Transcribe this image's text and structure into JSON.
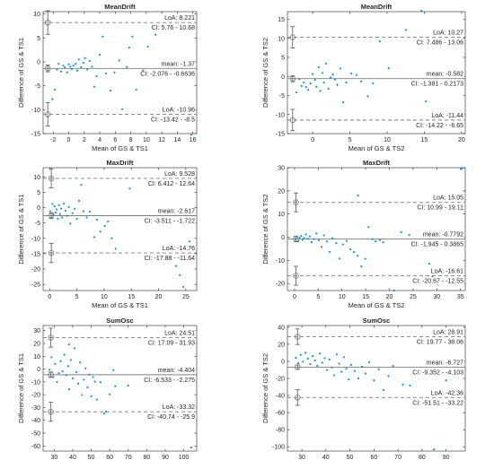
{
  "chart_data": [
    {
      "type": "scatter",
      "title": "MeanDrift",
      "xlabel": "Mean of GS & TS1",
      "ylabel": "Difference of GS & TS1",
      "xlim": [
        -3.3,
        16.5
      ],
      "ylim": [
        -15,
        10.5
      ],
      "xticks": [
        -2,
        0,
        2,
        4,
        6,
        8,
        10,
        12,
        14,
        16
      ],
      "yticks": [
        -15,
        -10,
        -5,
        0,
        5,
        10
      ],
      "mean": -1.37,
      "loa_upper": 8.221,
      "loa_lower": -10.96,
      "ci_x": -2.7,
      "ci_mean": [
        -2.076,
        -0.6636
      ],
      "ci_upper": [
        5.76,
        10.68
      ],
      "ci_lower": [
        -13.42,
        -8.5
      ],
      "label_upper": [
        "LoA: 8.221",
        "CI: 5.76 - 10.68"
      ],
      "label_mean": [
        "mean: -1.37",
        "CI: -2.076 - -0.6636"
      ],
      "label_lower": [
        "LoA: -10.96",
        "CI: -13.42 - -8.5"
      ],
      "points": [
        [
          -2.1,
          -7.8
        ],
        [
          -1.8,
          -5.8
        ],
        [
          -1.5,
          -1.6
        ],
        [
          -1.3,
          -0.4
        ],
        [
          -1,
          -2
        ],
        [
          -0.7,
          -0.8
        ],
        [
          -0.5,
          -1.2
        ],
        [
          -0.2,
          -2.2
        ],
        [
          0,
          -0.5
        ],
        [
          0.2,
          -1
        ],
        [
          0.4,
          -1.5
        ],
        [
          0.6,
          -0.8
        ],
        [
          0.9,
          -0.4
        ],
        [
          1.1,
          -1.8
        ],
        [
          1.3,
          0.5
        ],
        [
          1.6,
          -1.1
        ],
        [
          1.9,
          -0.2
        ],
        [
          2.1,
          0.8
        ],
        [
          2.4,
          -1.6
        ],
        [
          2.7,
          0.2
        ],
        [
          3,
          -1
        ],
        [
          3.3,
          -5.2
        ],
        [
          3.6,
          -3
        ],
        [
          4,
          1.5
        ],
        [
          4.4,
          5.3
        ],
        [
          4.8,
          -2.4
        ],
        [
          5.4,
          -6
        ],
        [
          5.9,
          -2.2
        ],
        [
          6.5,
          0.3
        ],
        [
          6.9,
          -9.9
        ],
        [
          7.5,
          -1.1
        ],
        [
          7.8,
          3
        ],
        [
          8.2,
          5.3
        ],
        [
          8.7,
          -5.8
        ],
        [
          9.6,
          -1.8
        ],
        [
          10.2,
          3.2
        ],
        [
          11.2,
          5.7
        ],
        [
          15.8,
          -15.2
        ]
      ]
    },
    {
      "type": "scatter",
      "title": "MeanDrift",
      "xlabel": "Mean of GS & TS2",
      "ylabel": "Difference of GS & TS2",
      "xlim": [
        -3.4,
        20.5
      ],
      "ylim": [
        -15,
        17
      ],
      "xticks": [
        0,
        5,
        10,
        15,
        20
      ],
      "yticks": [
        -15,
        -10,
        -5,
        0,
        5,
        10,
        15
      ],
      "mean": -0.582,
      "loa_upper": 10.27,
      "loa_lower": -11.44,
      "ci_x": -2.7,
      "ci_mean": [
        -1.381,
        0.2173
      ],
      "ci_upper": [
        7.486,
        13.06
      ],
      "ci_lower": [
        -14.22,
        -8.65
      ],
      "label_upper": [
        "LoA: 10.27",
        "CI: 7.486 - 13.06"
      ],
      "label_mean": [
        "mean: -0.582",
        "CI: -1.381 - 0.2173"
      ],
      "label_lower": [
        "LoA: -11.44",
        "CI: -14.22 - -8.65"
      ],
      "points": [
        [
          -2.2,
          -4.2
        ],
        [
          -1.8,
          -0.7
        ],
        [
          -1.5,
          -2.5
        ],
        [
          -1.2,
          -1.6
        ],
        [
          -0.9,
          -2.8
        ],
        [
          -0.6,
          -3.5
        ],
        [
          -0.3,
          -1.8
        ],
        [
          0,
          0.6
        ],
        [
          0.3,
          -0.9
        ],
        [
          0.5,
          -2.7
        ],
        [
          0.8,
          2.4
        ],
        [
          1,
          -3.8
        ],
        [
          1.3,
          0.9
        ],
        [
          1.5,
          -1.6
        ],
        [
          1.8,
          3.4
        ],
        [
          2.1,
          -3.2
        ],
        [
          2.4,
          -0.3
        ],
        [
          2.7,
          0.5
        ],
        [
          3,
          -0.8
        ],
        [
          3.3,
          -2.2
        ],
        [
          3.7,
          2.1
        ],
        [
          4.1,
          -6.8
        ],
        [
          4.5,
          -1.6
        ],
        [
          5.2,
          0.8
        ],
        [
          5.9,
          0.4
        ],
        [
          6.5,
          -1.3
        ],
        [
          7.4,
          -5.2
        ],
        [
          8.1,
          -1.8
        ],
        [
          9,
          9.2
        ],
        [
          10.2,
          2.2
        ],
        [
          12.5,
          12.2
        ],
        [
          14.6,
          17.2
        ],
        [
          15.2,
          -6.5
        ]
      ]
    },
    {
      "type": "scatter",
      "title": "MaxDrift",
      "xlabel": "Mean of GS & TS1",
      "ylabel": "Difference of GS & TS1",
      "xlim": [
        -1.2,
        27
      ],
      "ylim": [
        -27,
        13
      ],
      "xticks": [
        0,
        5,
        10,
        15,
        20,
        25
      ],
      "yticks": [
        -25,
        -20,
        -15,
        -10,
        -5,
        0,
        5,
        10
      ],
      "mean": -2.617,
      "loa_upper": 9.528,
      "loa_lower": -14.76,
      "ci_x": 0.3,
      "ci_mean": [
        -3.511,
        -1.722
      ],
      "ci_upper": [
        6.412,
        12.64
      ],
      "ci_lower": [
        -17.88,
        -11.64
      ],
      "label_upper": [
        "LoA: 9.528",
        "CI: 6.412 - 12.64"
      ],
      "label_mean": [
        "mean: -2.617",
        "CI: -3.511 - -1.722"
      ],
      "label_lower": [
        "LoA: -14.76",
        "CI: -17.88 - -11.64"
      ],
      "points": [
        [
          0.1,
          -1.2
        ],
        [
          0.3,
          -3.3
        ],
        [
          0.5,
          1.2
        ],
        [
          0.7,
          -2.2
        ],
        [
          0.9,
          0.4
        ],
        [
          1.1,
          -1.6
        ],
        [
          1.3,
          -0.6
        ],
        [
          1.5,
          -3.6
        ],
        [
          1.7,
          0.8
        ],
        [
          1.9,
          -2.1
        ],
        [
          2.1,
          -0.3
        ],
        [
          2.3,
          -3.2
        ],
        [
          2.6,
          1.3
        ],
        [
          2.9,
          -1
        ],
        [
          3.2,
          -2.7
        ],
        [
          3.5,
          0.2
        ],
        [
          3.8,
          -5.2
        ],
        [
          4.2,
          -1.8
        ],
        [
          4.6,
          -0.4
        ],
        [
          5,
          -3.6
        ],
        [
          5.4,
          2.2
        ],
        [
          5.8,
          7.4
        ],
        [
          6.2,
          -1.2
        ],
        [
          6.8,
          -3.2
        ],
        [
          7.4,
          -1.3
        ],
        [
          8.2,
          -9.6
        ],
        [
          8.7,
          -3.9
        ],
        [
          9.3,
          -7.8
        ],
        [
          10.1,
          -6
        ],
        [
          10.7,
          -4.5
        ],
        [
          11.4,
          -10
        ],
        [
          12.1,
          -13.4
        ],
        [
          14.7,
          6.2
        ],
        [
          17.6,
          -5.3
        ],
        [
          18.1,
          -4.7
        ],
        [
          23.2,
          -19
        ],
        [
          23.9,
          -22
        ],
        [
          24.5,
          -25.8
        ],
        [
          25.7,
          -11
        ]
      ]
    },
    {
      "type": "scatter",
      "title": "MaxDrift",
      "xlabel": "Mean of GS & TS2",
      "ylabel": "Difference of GS & TS2",
      "xlim": [
        -1.5,
        36
      ],
      "ylim": [
        -23,
        30
      ],
      "xticks": [
        0,
        5,
        10,
        15,
        20,
        25,
        30,
        35
      ],
      "yticks": [
        -20,
        -10,
        0,
        10,
        20,
        30
      ],
      "mean": -0.7792,
      "loa_upper": 15.05,
      "loa_lower": -16.61,
      "ci_x": 0.3,
      "ci_mean": [
        -1.945,
        0.3865
      ],
      "ci_upper": [
        10.99,
        19.11
      ],
      "ci_lower": [
        -20.67,
        -12.55
      ],
      "label_upper": [
        "LoA: 15.05",
        "CI: 10.99 - 19.11"
      ],
      "label_mean": [
        "mean: -0.7792",
        "CI: -1.945 - 0.3865"
      ],
      "label_lower": [
        "LoA: -16.61",
        "CI: -20.67 - -12.55"
      ],
      "points": [
        [
          0.2,
          -0.8
        ],
        [
          0.5,
          0.3
        ],
        [
          0.8,
          -1.6
        ],
        [
          1.1,
          -0.2
        ],
        [
          1.4,
          0.6
        ],
        [
          1.7,
          -1.1
        ],
        [
          2,
          -0.3
        ],
        [
          2.4,
          1.2
        ],
        [
          2.8,
          -0.6
        ],
        [
          3.2,
          0.4
        ],
        [
          3.6,
          -2.1
        ],
        [
          4.1,
          -0.8
        ],
        [
          4.6,
          1.6
        ],
        [
          5.1,
          -1.3
        ],
        [
          5.7,
          -4.2
        ],
        [
          6.2,
          0.8
        ],
        [
          6.8,
          -1.8
        ],
        [
          7.4,
          -6.3
        ],
        [
          8,
          -0.4
        ],
        [
          8.8,
          -2.6
        ],
        [
          9.5,
          -9.2
        ],
        [
          10.2,
          -3.1
        ],
        [
          11,
          -1.6
        ],
        [
          11.8,
          -5.2
        ],
        [
          12.5,
          -6.4
        ],
        [
          13.3,
          -8
        ],
        [
          14.1,
          -12.6
        ],
        [
          14.9,
          -9.3
        ],
        [
          15.6,
          4.4
        ],
        [
          16.4,
          -0.9
        ],
        [
          17.1,
          -1.8
        ],
        [
          18,
          -1.2
        ],
        [
          18.7,
          -2.2
        ],
        [
          13.4,
          18
        ],
        [
          21,
          -23
        ],
        [
          28.4,
          -11.5
        ],
        [
          29.1,
          -16.8
        ],
        [
          30.2,
          -20.4
        ],
        [
          35.3,
          29.5
        ],
        [
          22.5,
          2.2
        ],
        [
          24.2,
          1
        ]
      ]
    },
    {
      "type": "scatter",
      "title": "SumOsc",
      "xlabel": "",
      "ylabel": "Difference of GS & TS1",
      "xlim": [
        24,
        107
      ],
      "ylim": [
        -64,
        34
      ],
      "xticks": [
        30,
        40,
        50,
        60,
        70,
        80,
        90,
        100
      ],
      "yticks": [
        -60,
        -50,
        -40,
        -30,
        -20,
        -10,
        0,
        10,
        20,
        30
      ],
      "mean": -4.404,
      "loa_upper": 24.51,
      "loa_lower": -33.32,
      "ci_x": 28.2,
      "ci_mean": [
        -6.533,
        -2.275
      ],
      "ci_upper": [
        17.09,
        31.93
      ],
      "ci_lower": [
        -40.74,
        -25.9
      ],
      "label_upper": [
        "LoA: 24.51",
        "CI: 17.09 - 31.93"
      ],
      "label_mean": [
        "mean: -4.404",
        "CI: -6.533 - -2.275"
      ],
      "label_lower": [
        "LoA: -33.32",
        "CI: -40.74 - -25.9"
      ],
      "points": [
        [
          27.5,
          -0.5
        ],
        [
          28.5,
          9.2
        ],
        [
          29.5,
          -6.2
        ],
        [
          30.5,
          4.1
        ],
        [
          31.5,
          -10.1
        ],
        [
          32.5,
          -3.2
        ],
        [
          33.5,
          6.2
        ],
        [
          34.5,
          -1.8
        ],
        [
          35.5,
          11.2
        ],
        [
          36.5,
          -4.8
        ],
        [
          37.5,
          2.3
        ],
        [
          38,
          -15.8
        ],
        [
          39,
          7.1
        ],
        [
          40,
          -7.2
        ],
        [
          41,
          16.2
        ],
        [
          42,
          -2.3
        ],
        [
          43,
          -11.3
        ],
        [
          44,
          5.1
        ],
        [
          45,
          -20.2
        ],
        [
          46,
          -8.3
        ],
        [
          47,
          0.6
        ],
        [
          48,
          -14.2
        ],
        [
          49,
          -4.3
        ],
        [
          50,
          -21.2
        ],
        [
          51,
          -6.2
        ],
        [
          52,
          -9.8
        ],
        [
          53,
          -23.8
        ],
        [
          55,
          -10.3
        ],
        [
          57,
          -34.8
        ],
        [
          58,
          -33.2
        ],
        [
          60,
          -19.7
        ],
        [
          62,
          -0.8
        ],
        [
          63,
          -13.3
        ],
        [
          70,
          -12.8
        ],
        [
          38,
          19.2
        ],
        [
          104,
          -61.2
        ]
      ]
    },
    {
      "type": "scatter",
      "title": "SumOsc",
      "xlabel": "",
      "ylabel": "Difference of GS & TS2",
      "xlim": [
        24,
        98
      ],
      "ylim": [
        -105,
        42
      ],
      "xticks": [
        30,
        40,
        50,
        60,
        70,
        80,
        90
      ],
      "yticks": [
        -100,
        -80,
        -60,
        -40,
        -20,
        0,
        20,
        40
      ],
      "mean": -6.727,
      "loa_upper": 28.91,
      "loa_lower": -42.36,
      "ci_x": 28.2,
      "ci_mean": [
        -9.352,
        -4.103
      ],
      "ci_upper": [
        19.77,
        38.06
      ],
      "ci_lower": [
        -51.51,
        -33.22
      ],
      "label_upper": [
        "LoA: 28.91",
        "CI: 19.77 - 38.06"
      ],
      "label_mean": [
        "mean: -6.727",
        "CI: -9.352 - -4.103"
      ],
      "label_lower": [
        "LoA: -42.36",
        "CI: -51.51 - -33.22"
      ],
      "points": [
        [
          27.5,
          4.2
        ],
        [
          28.5,
          -2.1
        ],
        [
          29.5,
          7.6
        ],
        [
          30.5,
          -0.2
        ],
        [
          31.5,
          10.1
        ],
        [
          32.5,
          3.2
        ],
        [
          33.5,
          -3.1
        ],
        [
          34.5,
          6.2
        ],
        [
          35.5,
          1.1
        ],
        [
          36.5,
          -5.2
        ],
        [
          37.5,
          9.2
        ],
        [
          38.5,
          -1.6
        ],
        [
          39.5,
          3.8
        ],
        [
          40.5,
          -10.1
        ],
        [
          41.5,
          2.2
        ],
        [
          42.5,
          -7.2
        ],
        [
          43.5,
          -16.2
        ],
        [
          44.5,
          8.2
        ],
        [
          45.5,
          -2.6
        ],
        [
          46.5,
          -12.2
        ],
        [
          47.5,
          4.8
        ],
        [
          48.5,
          -8.6
        ],
        [
          49.5,
          -21.2
        ],
        [
          50.5,
          -4.1
        ],
        [
          52,
          -11.2
        ],
        [
          53.5,
          -19.8
        ],
        [
          55,
          -6.2
        ],
        [
          56.5,
          -14.2
        ],
        [
          58,
          -1.2
        ],
        [
          60,
          -22.2
        ],
        [
          62,
          -9.2
        ],
        [
          64,
          -33.5
        ],
        [
          66,
          -17.2
        ],
        [
          68,
          -5.3
        ],
        [
          72,
          -27.2
        ],
        [
          75,
          -28.2
        ],
        [
          82,
          -11.2
        ],
        [
          85,
          -103
        ],
        [
          90,
          -22.2
        ]
      ]
    }
  ]
}
